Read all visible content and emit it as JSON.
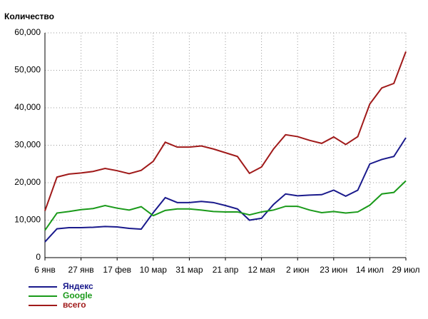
{
  "chart_data": {
    "type": "line",
    "title": "Количество",
    "categories": [
      "6 янв",
      null,
      null,
      "27 янв",
      null,
      null,
      "17 фев",
      null,
      null,
      "10 мар",
      null,
      null,
      "31 мар",
      null,
      null,
      "21 апр",
      null,
      null,
      "12 мая",
      null,
      null,
      "2 июн",
      null,
      null,
      "23 июн",
      null,
      null,
      "14 июл",
      null,
      null,
      "29 июл"
    ],
    "series": [
      {
        "name": "Яндекс",
        "color": "#1a1a8c",
        "values": [
          4200,
          7700,
          8000,
          8000,
          8100,
          8300,
          8200,
          7800,
          7600,
          12000,
          16000,
          14700,
          14700,
          15000,
          14700,
          13900,
          13000,
          10000,
          10500,
          14200,
          17000,
          16500,
          16700,
          16800,
          18000,
          16400,
          18000,
          25000,
          26200,
          27000,
          32000
        ]
      },
      {
        "name": "Google",
        "color": "#1a9a1a",
        "values": [
          7300,
          11900,
          12300,
          12800,
          13100,
          13900,
          13200,
          12700,
          13600,
          11200,
          12600,
          13000,
          13000,
          12700,
          12300,
          12200,
          12200,
          11400,
          12200,
          12700,
          13700,
          13700,
          12700,
          12000,
          12300,
          11900,
          12200,
          14000,
          17000,
          17400,
          20500
        ]
      },
      {
        "name": "всего",
        "color": "#a01a1a",
        "values": [
          12500,
          21500,
          22300,
          22600,
          23000,
          23800,
          23200,
          22400,
          23300,
          25700,
          30800,
          29500,
          29500,
          29800,
          29000,
          28000,
          27000,
          22500,
          24200,
          29000,
          32800,
          32300,
          31300,
          30500,
          32200,
          30200,
          32300,
          41000,
          45300,
          46500,
          55000
        ]
      }
    ],
    "ylim": [
      0,
      60000
    ],
    "yticks": [
      0,
      {
        "value": 10000,
        "label": "10,000"
      },
      {
        "value": 20000,
        "label": "20,000"
      },
      {
        "value": 30000,
        "label": "30,000"
      },
      {
        "value": 40000,
        "label": "40,000"
      },
      {
        "value": 50000,
        "label": "50,000"
      },
      {
        "value": 60000,
        "label": "60,000"
      }
    ],
    "grid": true,
    "legend": "bottom-left"
  }
}
